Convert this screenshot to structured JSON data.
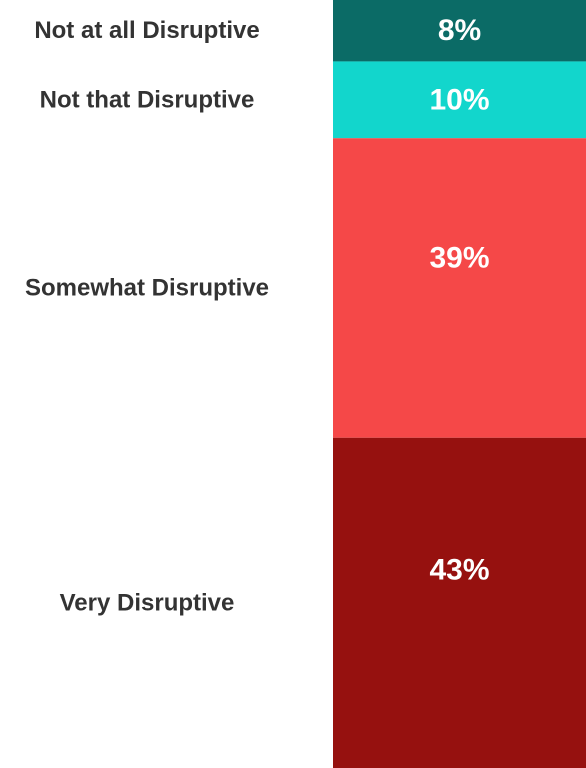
{
  "chart_data": {
    "type": "bar",
    "stacked": true,
    "orientation": "vertical-stack",
    "categories": [
      "Not at all Disruptive",
      "Not that Disruptive",
      "Somewhat Disruptive",
      "Very Disruptive"
    ],
    "values": [
      8,
      10,
      39,
      43
    ],
    "value_labels": [
      "8%",
      "10%",
      "39%",
      "43%"
    ],
    "unit": "%",
    "colors": [
      "#0b6b66",
      "#12d6cc",
      "#f54848",
      "#96110f"
    ],
    "title": "",
    "xlabel": "",
    "ylabel": "",
    "ylim": [
      0,
      100
    ],
    "legend": "none",
    "grid": false
  }
}
